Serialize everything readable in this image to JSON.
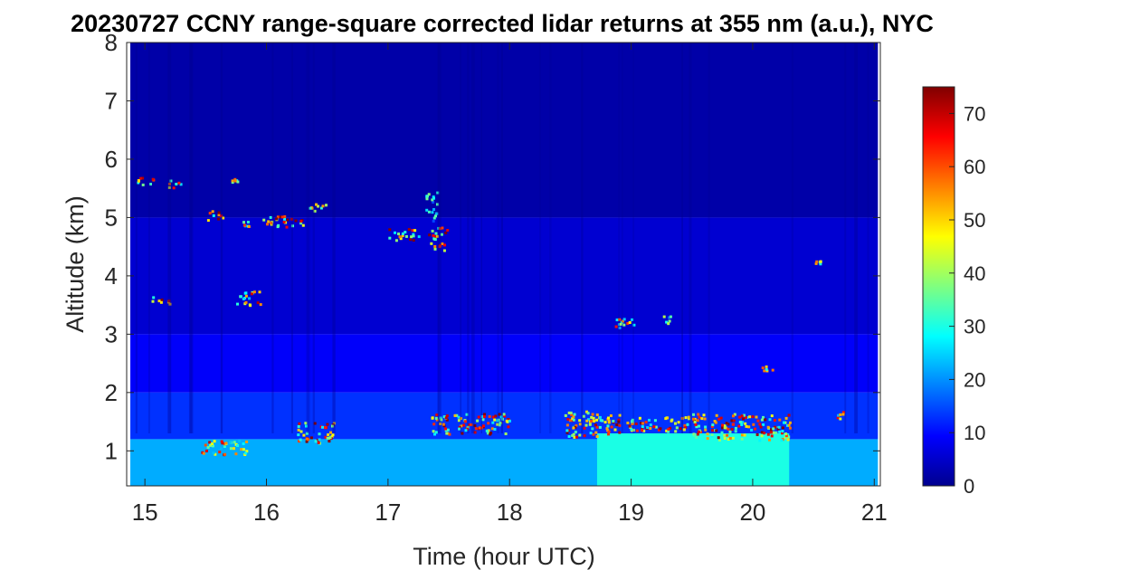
{
  "chart_data": {
    "type": "heatmap",
    "title": "20230727 CCNY range-square corrected lidar returns at 355 nm (a.u.), NYC",
    "xlabel": "Time (hour UTC)",
    "ylabel": "Altitude (km)",
    "xlim": [
      14.85,
      21.05
    ],
    "ylim": [
      0.4,
      8
    ],
    "xticks": [
      15,
      16,
      17,
      18,
      19,
      20,
      21
    ],
    "yticks": [
      1,
      2,
      3,
      4,
      5,
      6,
      7,
      8
    ],
    "time_range_data": [
      14.88,
      21.03
    ],
    "altitude_range_data": [
      0.4,
      8
    ],
    "colorbar": {
      "min": 0,
      "max": 75,
      "ticks": [
        0,
        10,
        20,
        30,
        40,
        50,
        60,
        70
      ],
      "colormap": "jet"
    },
    "background_levels": [
      {
        "altitude_km": [
          5.0,
          8.0
        ],
        "value": 3
      },
      {
        "altitude_km": [
          3.0,
          5.0
        ],
        "value": 6
      },
      {
        "altitude_km": [
          2.0,
          3.0
        ],
        "value": 9
      },
      {
        "altitude_km": [
          1.2,
          2.0
        ],
        "value": 13
      },
      {
        "altitude_km": [
          0.4,
          1.2
        ],
        "value": 22
      }
    ],
    "boundary_layer_enhancement": {
      "time_hour": [
        18.72,
        20.3
      ],
      "altitude_km": [
        0.4,
        1.3
      ],
      "value": 30
    },
    "clouds": [
      {
        "time_hour": [
          14.93,
          15.08
        ],
        "altitude_km": [
          5.55,
          5.7
        ],
        "value": 70
      },
      {
        "time_hour": [
          15.18,
          15.32
        ],
        "altitude_km": [
          5.52,
          5.65
        ],
        "value": 72
      },
      {
        "time_hour": [
          15.05,
          15.2
        ],
        "altitude_km": [
          3.52,
          3.68
        ],
        "value": 74
      },
      {
        "time_hour": [
          15.5,
          15.65
        ],
        "altitude_km": [
          4.97,
          5.13
        ],
        "value": 72
      },
      {
        "time_hour": [
          15.7,
          15.76
        ],
        "altitude_km": [
          5.6,
          5.68
        ],
        "value": 55
      },
      {
        "time_hour": [
          15.8,
          15.9
        ],
        "altitude_km": [
          4.8,
          4.95
        ],
        "value": 60
      },
      {
        "time_hour": [
          15.95,
          16.3
        ],
        "altitude_km": [
          4.85,
          5.05
        ],
        "value": 74
      },
      {
        "time_hour": [
          15.75,
          15.95
        ],
        "altitude_km": [
          3.5,
          3.75
        ],
        "value": 65
      },
      {
        "time_hour": [
          16.35,
          16.5
        ],
        "altitude_km": [
          5.1,
          5.25
        ],
        "value": 58
      },
      {
        "time_hour": [
          17.0,
          17.25
        ],
        "altitude_km": [
          4.62,
          4.82
        ],
        "value": 72
      },
      {
        "time_hour": [
          17.33,
          17.48
        ],
        "altitude_km": [
          4.45,
          4.85
        ],
        "value": 72
      },
      {
        "time_hour": [
          17.3,
          17.4
        ],
        "altitude_km": [
          4.95,
          5.45
        ],
        "value": 35
      },
      {
        "time_hour": [
          18.85,
          19.05
        ],
        "altitude_km": [
          3.12,
          3.3
        ],
        "value": 60
      },
      {
        "time_hour": [
          19.25,
          19.32
        ],
        "altitude_km": [
          3.2,
          3.35
        ],
        "value": 40
      },
      {
        "time_hour": [
          20.07,
          20.18
        ],
        "altitude_km": [
          2.38,
          2.48
        ],
        "value": 65
      },
      {
        "time_hour": [
          20.5,
          20.56
        ],
        "altitude_km": [
          4.22,
          4.3
        ],
        "value": 70
      },
      {
        "time_hour": [
          15.45,
          15.85
        ],
        "altitude_km": [
          0.95,
          1.2
        ],
        "value": 65
      },
      {
        "time_hour": [
          16.25,
          16.55
        ],
        "altitude_km": [
          1.15,
          1.5
        ],
        "value": 70
      },
      {
        "time_hour": [
          17.35,
          18.0
        ],
        "altitude_km": [
          1.3,
          1.65
        ],
        "value": 72
      },
      {
        "time_hour": [
          18.45,
          18.9
        ],
        "altitude_km": [
          1.25,
          1.7
        ],
        "value": 72
      },
      {
        "time_hour": [
          18.95,
          19.5
        ],
        "altitude_km": [
          1.35,
          1.6
        ],
        "value": 68
      },
      {
        "time_hour": [
          19.5,
          20.3
        ],
        "altitude_km": [
          1.2,
          1.65
        ],
        "value": 72
      },
      {
        "time_hour": [
          20.68,
          20.75
        ],
        "altitude_km": [
          1.5,
          1.7
        ],
        "value": 60
      }
    ]
  }
}
